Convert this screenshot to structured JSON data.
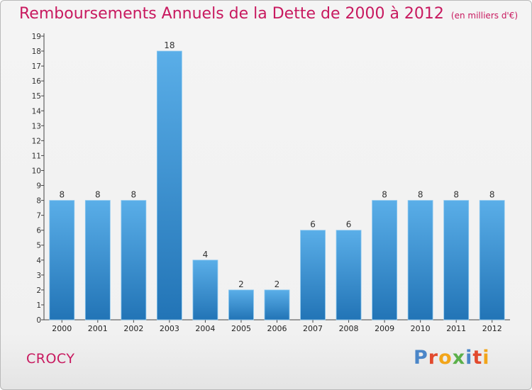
{
  "page": {
    "title": "Remboursements Annuels de la Dette de 2000 à 2012",
    "subtitle": "(en milliers d'€)",
    "commune": "CROCY",
    "logo_text": "Proxiti"
  },
  "colors": {
    "title": "#c8195f",
    "bar_top": "#5aaee8",
    "bar_bottom": "#2274b6",
    "logo_letters": [
      "#4b86c8",
      "#e24a2e",
      "#f2a51a",
      "#5bb04a",
      "#4b86c8",
      "#e24a2e",
      "#f2a51a"
    ]
  },
  "chart_data": {
    "type": "bar",
    "title": "Remboursements Annuels de la Dette de 2000 à 2012",
    "subtitle": "(en milliers d'€)",
    "categories": [
      "2000",
      "2001",
      "2002",
      "2003",
      "2004",
      "2005",
      "2006",
      "2007",
      "2008",
      "2009",
      "2010",
      "2011",
      "2012"
    ],
    "values": [
      8,
      8,
      8,
      18,
      4,
      2,
      2,
      6,
      6,
      8,
      8,
      8,
      8
    ],
    "data_labels": [
      "8",
      "8",
      "8",
      "18",
      "4",
      "2",
      "2",
      "6",
      "6",
      "8",
      "8",
      "8",
      "8"
    ],
    "y_ticks": [
      "0",
      "1",
      "2",
      "3",
      "4",
      "5",
      "6",
      "7",
      "8",
      "9",
      "10",
      "11",
      "12",
      "13",
      "14",
      "15",
      "16",
      "17",
      "18",
      "19"
    ],
    "ylim": [
      0,
      19
    ],
    "grid": false,
    "legend": "none"
  }
}
